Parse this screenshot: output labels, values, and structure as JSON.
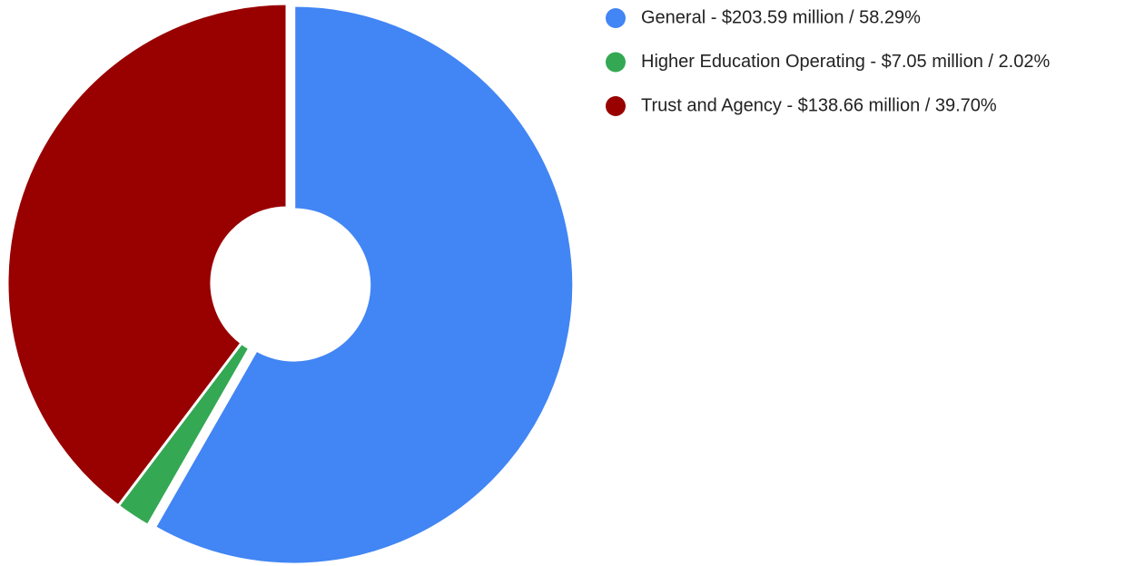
{
  "chart_data": {
    "type": "donut",
    "categories": [
      "General - $203.59 million / 58.29%",
      "Higher Education Operating - $7.05 million / 2.02%",
      "Trust and Agency - $138.66 million / 39.70%"
    ],
    "values": [
      203.59,
      7.05,
      138.66
    ],
    "colors": [
      "#4285f4",
      "#34a853",
      "#990000"
    ],
    "legend": "right"
  }
}
